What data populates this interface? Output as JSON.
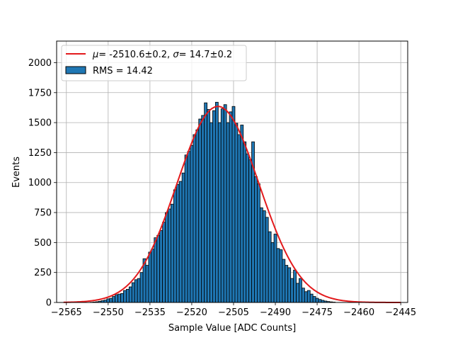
{
  "chart_data": {
    "type": "bar",
    "xlabel": "Sample Value [ADC Counts]",
    "ylabel": "Events",
    "xlim": [
      -2568.5,
      -2442.5
    ],
    "ylim": [
      0,
      2180
    ],
    "grid": true,
    "legend_placement": "top-left",
    "xticks": [
      -2565,
      -2550,
      -2535,
      -2520,
      -2505,
      -2490,
      -2475,
      -2460,
      -2445
    ],
    "yticks": [
      0,
      250,
      500,
      750,
      1000,
      1250,
      1500,
      1750,
      2000
    ],
    "bar_color": "#1f77b4",
    "bar_edge_color": "#000000",
    "fit_color": "#e31a1c",
    "histogram": {
      "name": "RMS = 14.42",
      "bin_width": 1,
      "x_start": -2556,
      "values": [
        2,
        4,
        6,
        10,
        15,
        20,
        30,
        35,
        50,
        65,
        70,
        75,
        100,
        110,
        130,
        165,
        190,
        200,
        250,
        365,
        310,
        420,
        445,
        540,
        560,
        600,
        670,
        750,
        780,
        820,
        940,
        985,
        1010,
        1080,
        1230,
        1260,
        1310,
        1400,
        1440,
        1530,
        1560,
        1665,
        1610,
        1500,
        1600,
        1670,
        1500,
        1615,
        1650,
        1500,
        1590,
        1635,
        1495,
        1400,
        1480,
        1340,
        1240,
        1190,
        1340,
        1050,
        990,
        790,
        765,
        710,
        590,
        500,
        570,
        450,
        440,
        360,
        310,
        290,
        200,
        270,
        160,
        200,
        120,
        90,
        100,
        70,
        50,
        35,
        25,
        18,
        12,
        8,
        5,
        3
      ]
    },
    "fit": {
      "name": "$\\mu=$-2510.6±0.2, $\\sigma=$14.7±0.2",
      "label_mu": "μ",
      "label_mu_text": "= -2510.6±0.2, ",
      "label_sigma": "σ",
      "label_sigma_text": "= 14.7±0.2",
      "mu": -2510.6,
      "sigma": 14.7,
      "amplitude": 1635,
      "x_range": [
        -2566,
        -2445
      ]
    },
    "legend": {
      "fit_entry": "μ = -2510.6±0.2, σ = 14.7±0.2",
      "hist_entry": "RMS = 14.42"
    }
  }
}
